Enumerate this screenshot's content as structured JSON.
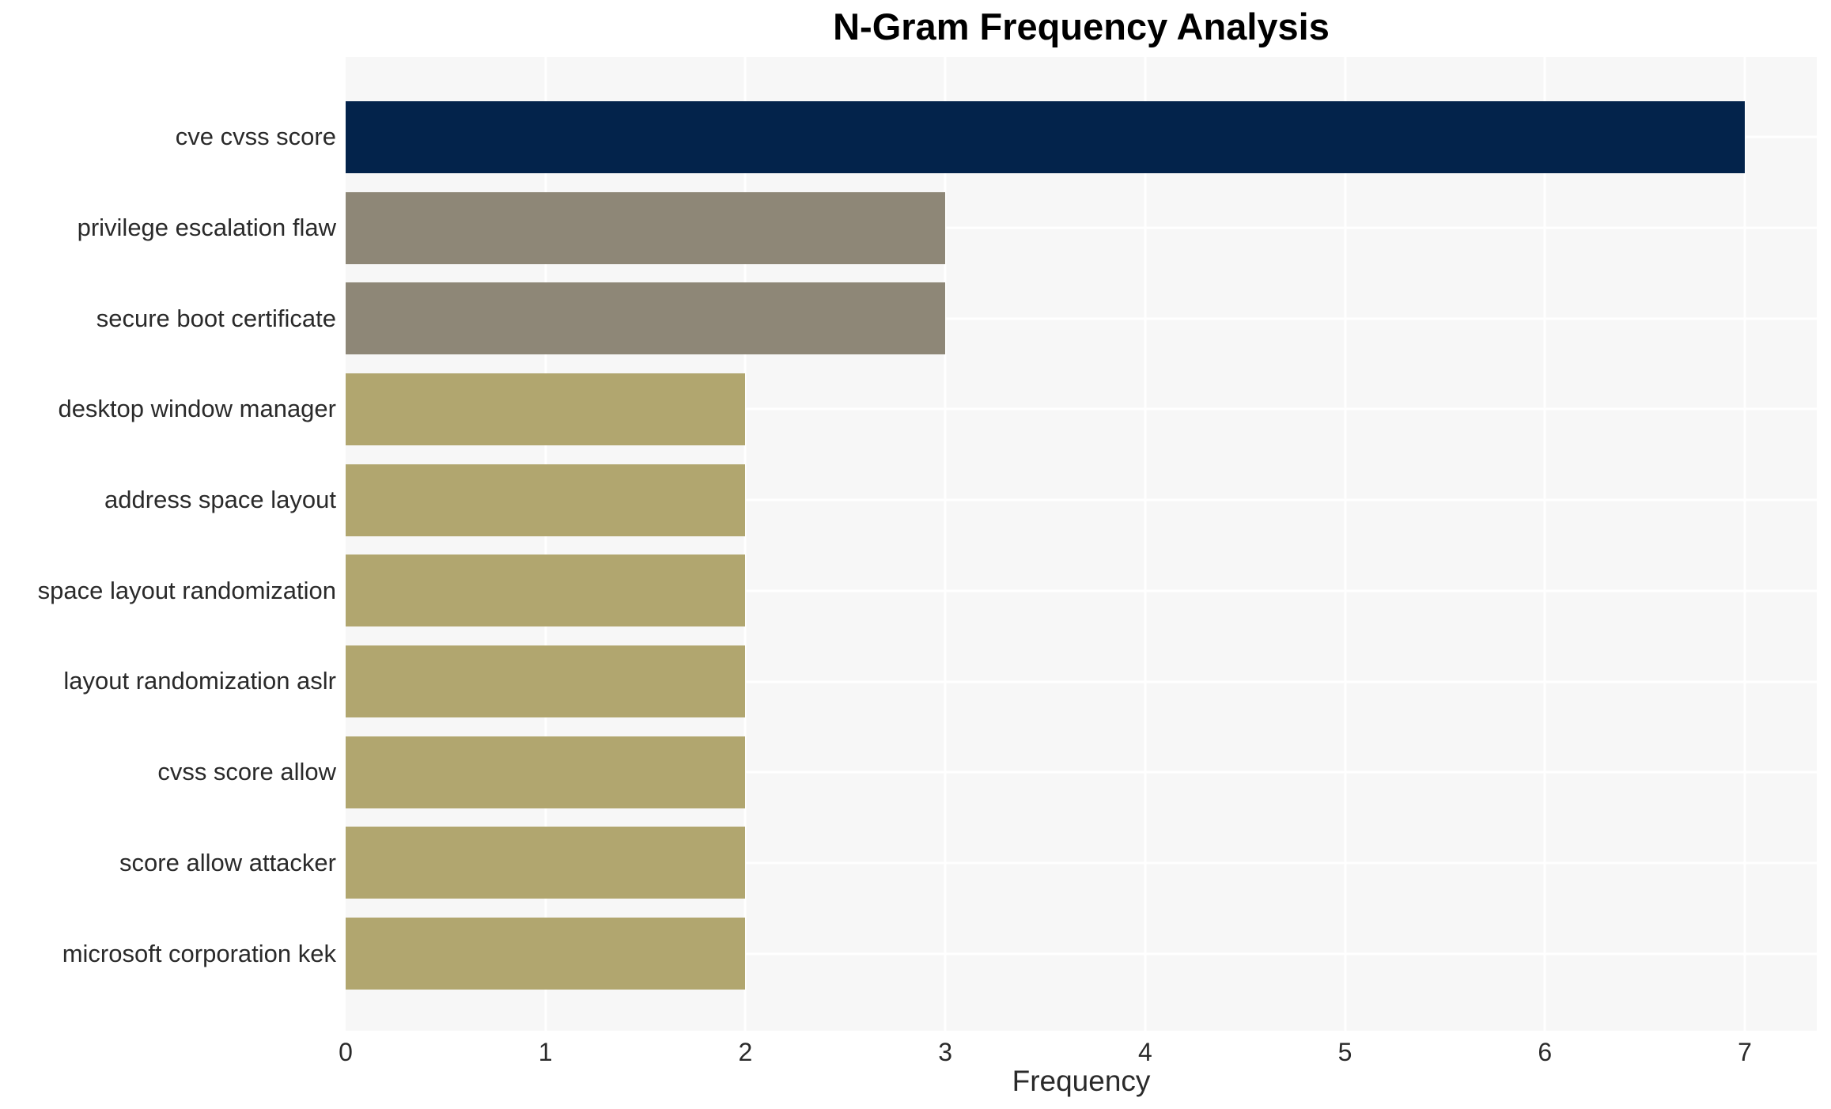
{
  "title": "N-Gram Frequency Analysis",
  "x_axis_label": "Frequency",
  "chart_data": {
    "type": "bar",
    "orientation": "horizontal",
    "title": "N-Gram Frequency Analysis",
    "xlabel": "Frequency",
    "ylabel": "",
    "categories": [
      "cve cvss score",
      "privilege escalation flaw",
      "secure boot certificate",
      "desktop window manager",
      "address space layout",
      "space layout randomization",
      "layout randomization aslr",
      "cvss score allow",
      "score allow attacker",
      "microsoft corporation kek"
    ],
    "values": [
      7,
      3,
      3,
      2,
      2,
      2,
      2,
      2,
      2,
      2
    ],
    "bar_colors": [
      "#03234b",
      "#8e8777",
      "#8e8777",
      "#b1a66f",
      "#b1a66f",
      "#b1a66f",
      "#b1a66f",
      "#b1a66f",
      "#b1a66f",
      "#b1a66f"
    ],
    "xticks": [
      0,
      1,
      2,
      3,
      4,
      5,
      6,
      7
    ],
    "xlim": [
      0,
      7.36
    ],
    "grid": true,
    "legend": false,
    "plot_background": "#f7f7f7",
    "grid_color": "#ffffff",
    "text_color": "#2a2a2a"
  }
}
